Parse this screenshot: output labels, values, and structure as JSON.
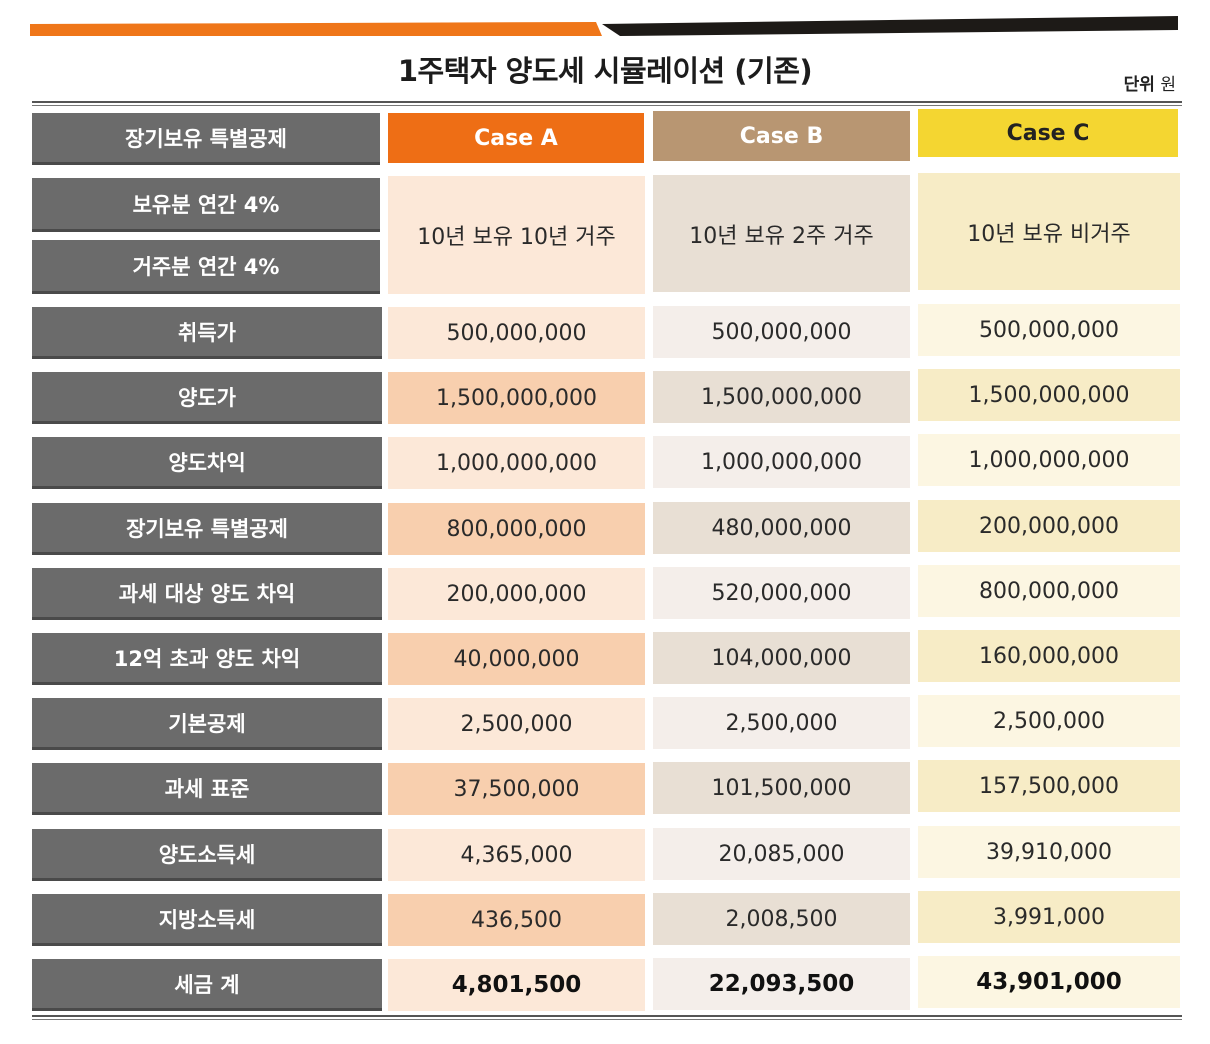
{
  "title": "1주택자 양도세 시뮬레이션 (기존)",
  "unit": {
    "label": "단위",
    "value": "원"
  },
  "colors": {
    "orange": "#ef7619",
    "dark": "#1d1a17",
    "label_bg": "#6b6b6b",
    "case_a_header": "#ee6e15",
    "case_b_header": "#b89672",
    "case_c_header": "#f4d631",
    "case_a_cell_light": "#fce8d8",
    "case_a_cell_dark": "#f8cfae",
    "case_b_cell_light": "#f4eeea",
    "case_b_cell_dark": "#e8dfd4",
    "case_c_cell_light": "#fcf6e2",
    "case_c_cell_dark": "#f7ecc6"
  },
  "table": {
    "header_label": "장기보유 특별공제",
    "columns": [
      "Case A",
      "Case B",
      "Case C"
    ],
    "deduction_rows": {
      "labels": [
        "보유분 연간 4%",
        "거주분 연간 4%"
      ],
      "values": [
        "10년 보유 10년 거주",
        "10년 보유 2주 거주",
        "10년 보유 비거주"
      ]
    },
    "rows": [
      {
        "label": "취득가",
        "values": [
          "500,000,000",
          "500,000,000",
          "500,000,000"
        ]
      },
      {
        "label": "양도가",
        "values": [
          "1,500,000,000",
          "1,500,000,000",
          "1,500,000,000"
        ]
      },
      {
        "label": "양도차익",
        "values": [
          "1,000,000,000",
          "1,000,000,000",
          "1,000,000,000"
        ]
      },
      {
        "label": "장기보유 특별공제",
        "values": [
          "800,000,000",
          "480,000,000",
          "200,000,000"
        ]
      },
      {
        "label": "과세 대상 양도 차익",
        "values": [
          "200,000,000",
          "520,000,000",
          "800,000,000"
        ]
      },
      {
        "label": "12억 초과 양도 차익",
        "values": [
          "40,000,000",
          "104,000,000",
          "160,000,000"
        ]
      },
      {
        "label": "기본공제",
        "values": [
          "2,500,000",
          "2,500,000",
          "2,500,000"
        ]
      },
      {
        "label": "과세 표준",
        "values": [
          "37,500,000",
          "101,500,000",
          "157,500,000"
        ]
      },
      {
        "label": "양도소득세",
        "values": [
          "4,365,000",
          "20,085,000",
          "39,910,000"
        ]
      },
      {
        "label": "지방소득세",
        "values": [
          "436,500",
          "2,008,500",
          "3,991,000"
        ]
      },
      {
        "label": "세금 계",
        "values": [
          "4,801,500",
          "22,093,500",
          "43,901,000"
        ]
      }
    ]
  }
}
